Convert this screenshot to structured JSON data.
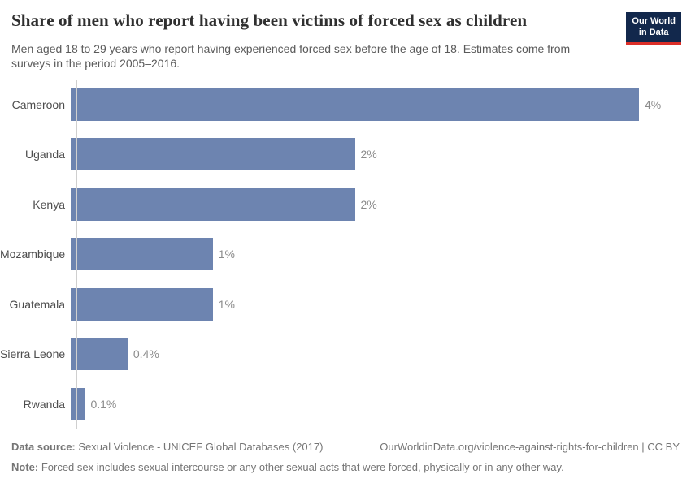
{
  "header": {
    "title": "Share of men who report having been victims of forced sex as children",
    "subtitle": "Men aged 18 to 29 years who report having experienced forced sex before the age of 18. Estimates come from surveys in the period 2005–2016.",
    "logo": {
      "line1": "Our World",
      "line2": "in Data"
    }
  },
  "chart_data": {
    "type": "bar",
    "orientation": "horizontal",
    "title": "Share of men who report having been victims of forced sex as children",
    "categories": [
      "Cameroon",
      "Uganda",
      "Kenya",
      "Mozambique",
      "Guatemala",
      "Sierra Leone",
      "Rwanda"
    ],
    "values": [
      4,
      2,
      2,
      1,
      1,
      0.4,
      0.1
    ],
    "value_labels": [
      "4%",
      "2%",
      "2%",
      "1%",
      "1%",
      "0.4%",
      "0.1%"
    ],
    "unit": "%",
    "xlim": [
      0,
      4
    ],
    "grid": false,
    "legend": "none",
    "bar_color": "#6d84b0"
  },
  "footer": {
    "datasource_label": "Data source:",
    "datasource_text": " Sexual Violence - UNICEF Global Databases (2017)",
    "link_text": "OurWorldinData.org/violence-against-rights-for-children | CC BY",
    "note_label": "Note:",
    "note_text": " Forced sex includes sexual intercourse or any other sexual acts that were forced, physically or in any other way."
  },
  "colors": {
    "bar": "#6d84b0",
    "axis_line": "#cfcfcf",
    "logo_background": "#12284c",
    "logo_stripe": "#dc2f28",
    "title_text": "#2f2f2f",
    "subtitle_text": "#5a5a5a",
    "category_label_text": "#4d4d4d",
    "value_label_text": "#8b8b8b",
    "footer_text": "#757575"
  }
}
